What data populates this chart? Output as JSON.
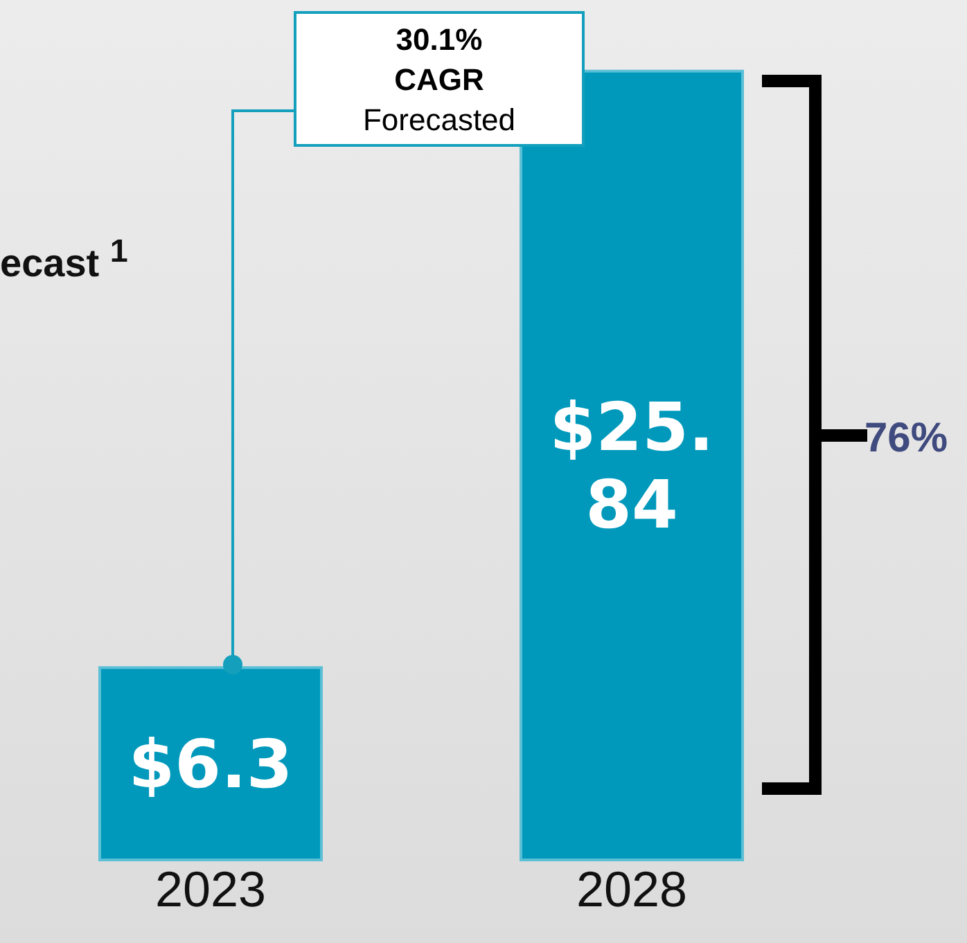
{
  "chart_data": {
    "type": "bar",
    "title": "ecast $^{1}$",
    "categories": [
      "2023",
      "2028"
    ],
    "values": [
      6.3,
      25.84
    ],
    "value_labels": [
      "$6.3",
      "$25.84"
    ],
    "color": "#0099bb",
    "annotations": [
      "30.1% CAGR Forecasted",
      "76%"
    ]
  }
}
